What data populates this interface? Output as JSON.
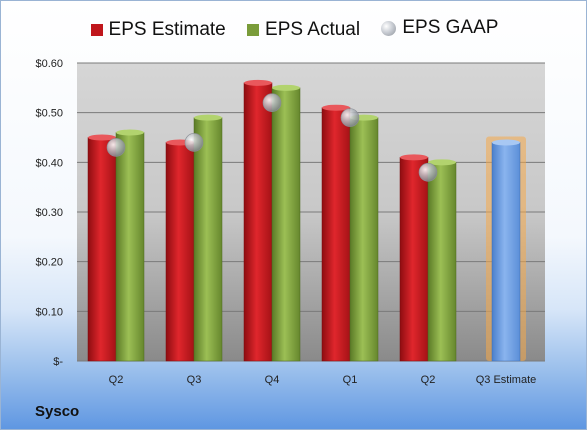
{
  "legend": [
    {
      "label": "EPS Estimate",
      "color": "#c0161c"
    },
    {
      "label": "EPS Actual",
      "color": "#7a9c3a"
    },
    {
      "label": "EPS GAAP",
      "color": "#a9adb4"
    }
  ],
  "company": "Sysco",
  "colors": {
    "estimate": "#c0161c",
    "actual": "#7a9c3a",
    "projection": "#6b9de0",
    "projection_glow": "#f5a94a",
    "gaap": "#a9adb4"
  },
  "chart_data": {
    "type": "bar",
    "categories": [
      "Q2",
      "Q3",
      "Q4",
      "Q1",
      "Q2",
      "Q3 Estimate"
    ],
    "series": [
      {
        "name": "EPS Estimate",
        "values": [
          0.45,
          0.44,
          0.56,
          0.51,
          0.41,
          0.44
        ]
      },
      {
        "name": "EPS Actual",
        "values": [
          0.46,
          0.49,
          0.55,
          0.49,
          0.4,
          null
        ]
      },
      {
        "name": "EPS GAAP",
        "type": "scatter",
        "values": [
          0.43,
          0.44,
          0.52,
          0.49,
          0.38,
          null
        ]
      }
    ],
    "ylim": [
      0,
      0.6
    ],
    "yticks": [
      0,
      0.1,
      0.2,
      0.3,
      0.4,
      0.5,
      0.6
    ],
    "ytick_labels": [
      "$-",
      "$0.10",
      "$0.20",
      "$0.30",
      "$0.40",
      "$0.50",
      "$0.60"
    ],
    "grid": true,
    "legend_position": "top"
  }
}
